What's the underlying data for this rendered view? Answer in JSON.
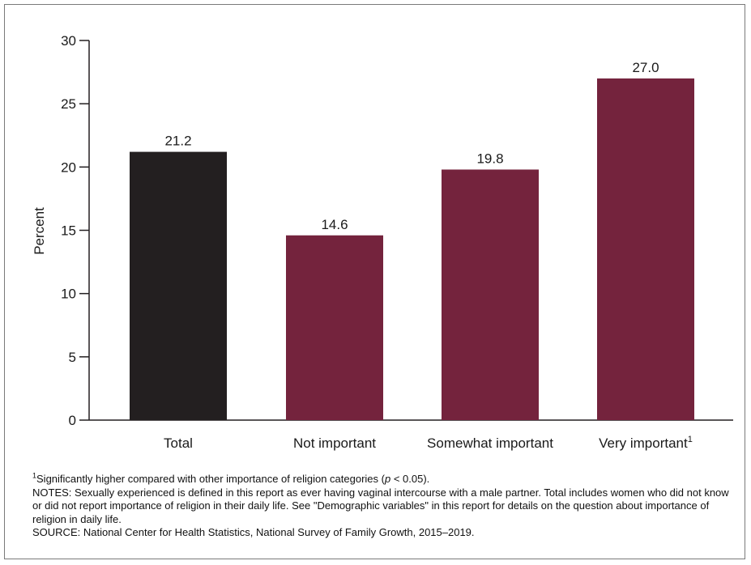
{
  "chart_data": {
    "type": "bar",
    "title": "",
    "xlabel": "",
    "ylabel": "Percent",
    "ylim": [
      0,
      30
    ],
    "yticks": [
      0,
      5,
      10,
      15,
      20,
      25,
      30
    ],
    "categories": [
      "Total",
      "Not important",
      "Somewhat important",
      "Very important"
    ],
    "category_superscripts": [
      "",
      "",
      "",
      "1"
    ],
    "values": [
      21.2,
      14.6,
      19.8,
      27.0
    ],
    "value_labels": [
      "21.2",
      "14.6",
      "19.8",
      "27.0"
    ],
    "colors": [
      "#231f20",
      "#74233d",
      "#74233d",
      "#74233d"
    ],
    "grid": false,
    "legend": "none"
  },
  "footnotes": {
    "note1_marker": "1",
    "note1_text_before": "Significantly higher compared with other importance of religion categories (",
    "note1_p": "p",
    "note1_text_after": " < 0.05).",
    "notes": "NOTES: Sexually experienced is defined in this report as ever having vaginal intercourse with a male partner. Total includes women who did not know or did not report importance of religion in their daily life. See \"Demographic variables\" in this report for details on the question about importance of religion in daily life.",
    "source": "SOURCE: National Center for Health Statistics, National Survey of Family Growth, 2015–2019."
  }
}
